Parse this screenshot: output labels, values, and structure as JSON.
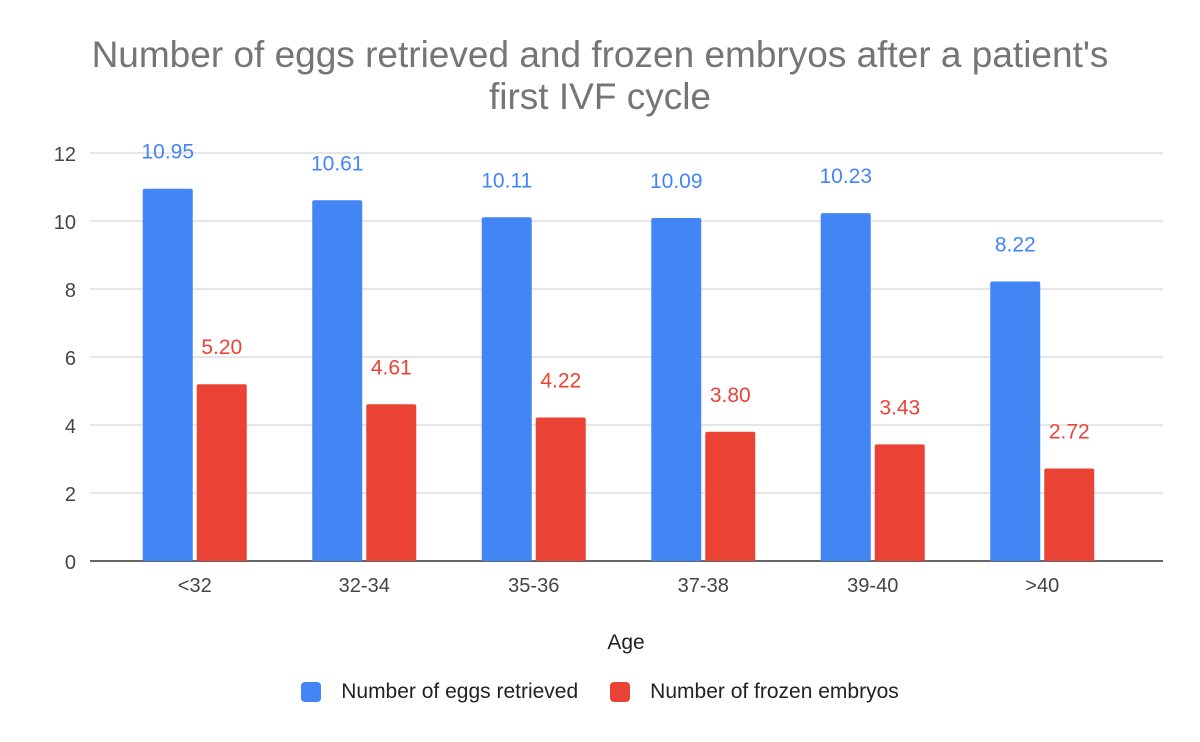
{
  "chart_data": {
    "type": "bar",
    "title_lines": [
      "Number of eggs retrieved and frozen embryos after a patient's",
      "first IVF cycle"
    ],
    "xlabel": "Age",
    "ylabel": "",
    "categories": [
      "<32",
      "32-34",
      "35-36",
      "37-38",
      "39-40",
      ">40"
    ],
    "series": [
      {
        "name": "Number of eggs retrieved",
        "color": "#4285F4",
        "values": [
          10.95,
          10.61,
          10.11,
          10.09,
          10.23,
          8.22
        ],
        "labels": [
          "10.95",
          "10.61",
          "10.11",
          "10.09",
          "10.23",
          "8.22"
        ]
      },
      {
        "name": "Number of frozen embryos",
        "color": "#EA4335",
        "values": [
          5.2,
          4.61,
          4.22,
          3.8,
          3.43,
          2.72
        ],
        "labels": [
          "5.20",
          "4.61",
          "4.22",
          "3.80",
          "3.43",
          "2.72"
        ]
      }
    ],
    "ylim": [
      0,
      12
    ],
    "yticks": [
      "0",
      "2",
      "4",
      "6",
      "8",
      "10",
      "12"
    ],
    "grid": true,
    "legend_position": "bottom"
  }
}
